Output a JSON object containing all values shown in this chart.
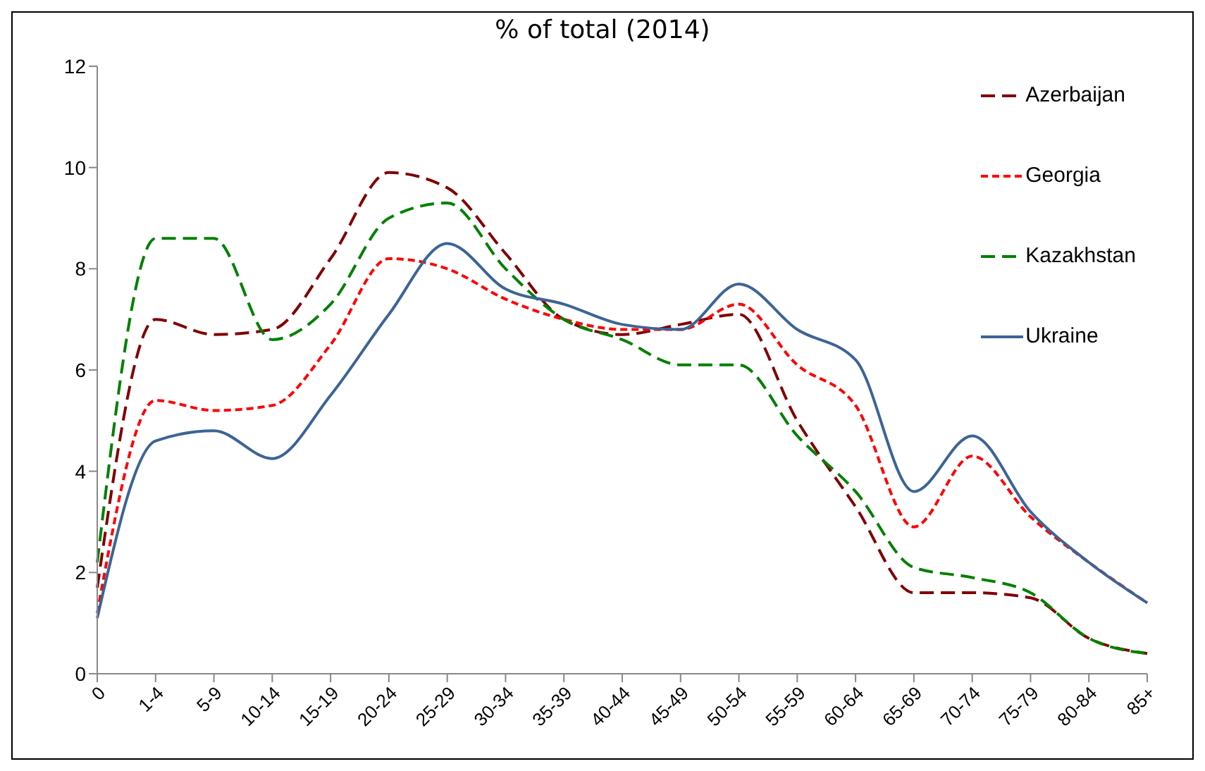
{
  "chart_data": {
    "type": "line",
    "title": "% of total (2014)",
    "categories": [
      "0",
      "1-4",
      "5-9",
      "10-14",
      "15-19",
      "20-24",
      "25-29",
      "30-34",
      "35-39",
      "40-44",
      "45-49",
      "50-54",
      "55-59",
      "60-64",
      "65-69",
      "70-74",
      "75-79",
      "80-84",
      "85+"
    ],
    "series": [
      {
        "name": "Azerbaijan",
        "color": "#800000",
        "line_style": "dashed",
        "values": [
          1.7,
          7.0,
          6.7,
          6.8,
          8.2,
          9.9,
          9.6,
          8.3,
          7.0,
          6.7,
          6.9,
          7.1,
          5.0,
          3.3,
          1.6,
          1.6,
          1.5,
          0.7,
          0.4
        ]
      },
      {
        "name": "Georgia",
        "color": "#ff0000",
        "line_style": "dotted",
        "values": [
          1.2,
          5.4,
          5.2,
          5.3,
          6.5,
          8.2,
          8.0,
          7.4,
          7.0,
          6.8,
          6.8,
          7.3,
          6.1,
          5.3,
          2.9,
          4.3,
          3.1,
          2.2,
          1.4
        ]
      },
      {
        "name": "Kazakhstan",
        "color": "#008000",
        "line_style": "dashed",
        "values": [
          2.2,
          8.6,
          8.6,
          6.6,
          7.3,
          9.0,
          9.3,
          8.0,
          7.0,
          6.6,
          6.1,
          6.1,
          4.7,
          3.6,
          2.1,
          1.9,
          1.6,
          0.7,
          0.4
        ]
      },
      {
        "name": "Ukraine",
        "color": "#3c6496",
        "line_style": "solid",
        "values": [
          1.1,
          4.6,
          4.8,
          4.25,
          5.5,
          7.1,
          8.5,
          7.6,
          7.3,
          6.9,
          6.8,
          7.7,
          6.8,
          6.2,
          3.6,
          4.7,
          3.2,
          2.2,
          1.4
        ]
      }
    ],
    "ylim": [
      0,
      12
    ],
    "yticks": [
      0,
      2,
      4,
      6,
      8,
      10,
      12
    ],
    "grid": false,
    "legend": "top right",
    "marker": "none"
  }
}
